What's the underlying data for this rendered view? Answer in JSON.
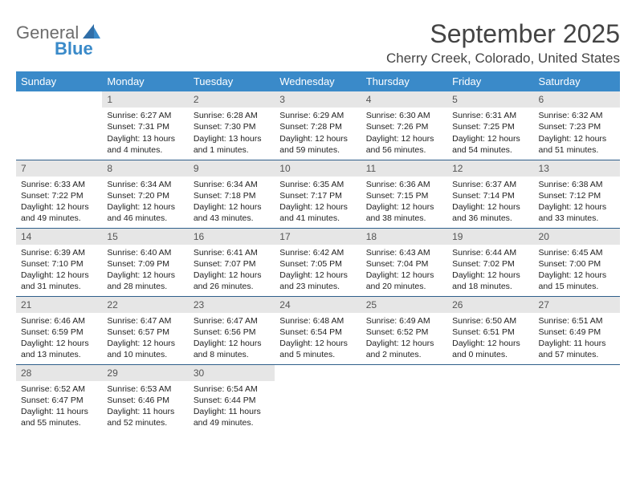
{
  "logo": {
    "line1": "General",
    "line2": "Blue"
  },
  "title": "September 2025",
  "subtitle": "Cherry Creek, Colorado, United States",
  "colors": {
    "header_bg": "#3a8ac9",
    "header_text": "#ffffff",
    "daynum_bg": "#e6e6e6",
    "daynum_text": "#555555",
    "row_divider": "#2f5f8a",
    "body_text": "#222222",
    "title_text": "#444444",
    "logo_gray": "#6d6d6d",
    "logo_blue": "#3a8ac9",
    "page_bg": "#ffffff"
  },
  "typography": {
    "title_fontsize": 32,
    "subtitle_fontsize": 17,
    "header_fontsize": 13,
    "daynum_fontsize": 12,
    "cell_fontsize": 10.5
  },
  "weekdays": [
    "Sunday",
    "Monday",
    "Tuesday",
    "Wednesday",
    "Thursday",
    "Friday",
    "Saturday"
  ],
  "weeks": [
    [
      null,
      {
        "n": "1",
        "sunrise": "Sunrise: 6:27 AM",
        "sunset": "Sunset: 7:31 PM",
        "day1": "Daylight: 13 hours",
        "day2": "and 4 minutes."
      },
      {
        "n": "2",
        "sunrise": "Sunrise: 6:28 AM",
        "sunset": "Sunset: 7:30 PM",
        "day1": "Daylight: 13 hours",
        "day2": "and 1 minutes."
      },
      {
        "n": "3",
        "sunrise": "Sunrise: 6:29 AM",
        "sunset": "Sunset: 7:28 PM",
        "day1": "Daylight: 12 hours",
        "day2": "and 59 minutes."
      },
      {
        "n": "4",
        "sunrise": "Sunrise: 6:30 AM",
        "sunset": "Sunset: 7:26 PM",
        "day1": "Daylight: 12 hours",
        "day2": "and 56 minutes."
      },
      {
        "n": "5",
        "sunrise": "Sunrise: 6:31 AM",
        "sunset": "Sunset: 7:25 PM",
        "day1": "Daylight: 12 hours",
        "day2": "and 54 minutes."
      },
      {
        "n": "6",
        "sunrise": "Sunrise: 6:32 AM",
        "sunset": "Sunset: 7:23 PM",
        "day1": "Daylight: 12 hours",
        "day2": "and 51 minutes."
      }
    ],
    [
      {
        "n": "7",
        "sunrise": "Sunrise: 6:33 AM",
        "sunset": "Sunset: 7:22 PM",
        "day1": "Daylight: 12 hours",
        "day2": "and 49 minutes."
      },
      {
        "n": "8",
        "sunrise": "Sunrise: 6:34 AM",
        "sunset": "Sunset: 7:20 PM",
        "day1": "Daylight: 12 hours",
        "day2": "and 46 minutes."
      },
      {
        "n": "9",
        "sunrise": "Sunrise: 6:34 AM",
        "sunset": "Sunset: 7:18 PM",
        "day1": "Daylight: 12 hours",
        "day2": "and 43 minutes."
      },
      {
        "n": "10",
        "sunrise": "Sunrise: 6:35 AM",
        "sunset": "Sunset: 7:17 PM",
        "day1": "Daylight: 12 hours",
        "day2": "and 41 minutes."
      },
      {
        "n": "11",
        "sunrise": "Sunrise: 6:36 AM",
        "sunset": "Sunset: 7:15 PM",
        "day1": "Daylight: 12 hours",
        "day2": "and 38 minutes."
      },
      {
        "n": "12",
        "sunrise": "Sunrise: 6:37 AM",
        "sunset": "Sunset: 7:14 PM",
        "day1": "Daylight: 12 hours",
        "day2": "and 36 minutes."
      },
      {
        "n": "13",
        "sunrise": "Sunrise: 6:38 AM",
        "sunset": "Sunset: 7:12 PM",
        "day1": "Daylight: 12 hours",
        "day2": "and 33 minutes."
      }
    ],
    [
      {
        "n": "14",
        "sunrise": "Sunrise: 6:39 AM",
        "sunset": "Sunset: 7:10 PM",
        "day1": "Daylight: 12 hours",
        "day2": "and 31 minutes."
      },
      {
        "n": "15",
        "sunrise": "Sunrise: 6:40 AM",
        "sunset": "Sunset: 7:09 PM",
        "day1": "Daylight: 12 hours",
        "day2": "and 28 minutes."
      },
      {
        "n": "16",
        "sunrise": "Sunrise: 6:41 AM",
        "sunset": "Sunset: 7:07 PM",
        "day1": "Daylight: 12 hours",
        "day2": "and 26 minutes."
      },
      {
        "n": "17",
        "sunrise": "Sunrise: 6:42 AM",
        "sunset": "Sunset: 7:05 PM",
        "day1": "Daylight: 12 hours",
        "day2": "and 23 minutes."
      },
      {
        "n": "18",
        "sunrise": "Sunrise: 6:43 AM",
        "sunset": "Sunset: 7:04 PM",
        "day1": "Daylight: 12 hours",
        "day2": "and 20 minutes."
      },
      {
        "n": "19",
        "sunrise": "Sunrise: 6:44 AM",
        "sunset": "Sunset: 7:02 PM",
        "day1": "Daylight: 12 hours",
        "day2": "and 18 minutes."
      },
      {
        "n": "20",
        "sunrise": "Sunrise: 6:45 AM",
        "sunset": "Sunset: 7:00 PM",
        "day1": "Daylight: 12 hours",
        "day2": "and 15 minutes."
      }
    ],
    [
      {
        "n": "21",
        "sunrise": "Sunrise: 6:46 AM",
        "sunset": "Sunset: 6:59 PM",
        "day1": "Daylight: 12 hours",
        "day2": "and 13 minutes."
      },
      {
        "n": "22",
        "sunrise": "Sunrise: 6:47 AM",
        "sunset": "Sunset: 6:57 PM",
        "day1": "Daylight: 12 hours",
        "day2": "and 10 minutes."
      },
      {
        "n": "23",
        "sunrise": "Sunrise: 6:47 AM",
        "sunset": "Sunset: 6:56 PM",
        "day1": "Daylight: 12 hours",
        "day2": "and 8 minutes."
      },
      {
        "n": "24",
        "sunrise": "Sunrise: 6:48 AM",
        "sunset": "Sunset: 6:54 PM",
        "day1": "Daylight: 12 hours",
        "day2": "and 5 minutes."
      },
      {
        "n": "25",
        "sunrise": "Sunrise: 6:49 AM",
        "sunset": "Sunset: 6:52 PM",
        "day1": "Daylight: 12 hours",
        "day2": "and 2 minutes."
      },
      {
        "n": "26",
        "sunrise": "Sunrise: 6:50 AM",
        "sunset": "Sunset: 6:51 PM",
        "day1": "Daylight: 12 hours",
        "day2": "and 0 minutes."
      },
      {
        "n": "27",
        "sunrise": "Sunrise: 6:51 AM",
        "sunset": "Sunset: 6:49 PM",
        "day1": "Daylight: 11 hours",
        "day2": "and 57 minutes."
      }
    ],
    [
      {
        "n": "28",
        "sunrise": "Sunrise: 6:52 AM",
        "sunset": "Sunset: 6:47 PM",
        "day1": "Daylight: 11 hours",
        "day2": "and 55 minutes."
      },
      {
        "n": "29",
        "sunrise": "Sunrise: 6:53 AM",
        "sunset": "Sunset: 6:46 PM",
        "day1": "Daylight: 11 hours",
        "day2": "and 52 minutes."
      },
      {
        "n": "30",
        "sunrise": "Sunrise: 6:54 AM",
        "sunset": "Sunset: 6:44 PM",
        "day1": "Daylight: 11 hours",
        "day2": "and 49 minutes."
      },
      null,
      null,
      null,
      null
    ]
  ]
}
